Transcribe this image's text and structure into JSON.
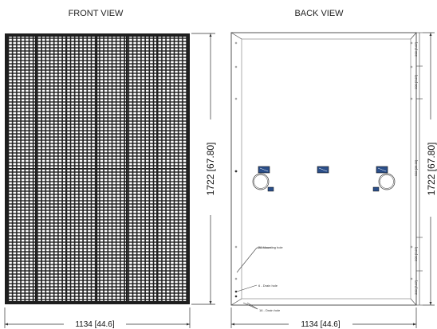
{
  "front_view": {
    "title": "FRONT VIEW",
    "width_label": "1134 [44.6]",
    "height_label": "1722 [67.80]"
  },
  "back_view": {
    "title": "BACK VIEW",
    "width_label": "1134 [44.6]",
    "height_label": "1722 [67.80]",
    "side_labels": {
      "top1": "200 [7.87]",
      "top2": "200 [7.87]",
      "middle": "922 [36.30]",
      "bottom1": "200 [7.87]",
      "bottom2": "200 [7.87]"
    },
    "callouts": {
      "mounting_hole": "Ø8 Mounting hole",
      "drain_hole_6": "6 - Drain hole",
      "drain_hole_16": "16 - Drain hole"
    }
  },
  "colors": {
    "panel_cells": "#1e1e1e",
    "frame": "#111111",
    "outline": "#444444",
    "junction_box": "#2b4f8a"
  }
}
